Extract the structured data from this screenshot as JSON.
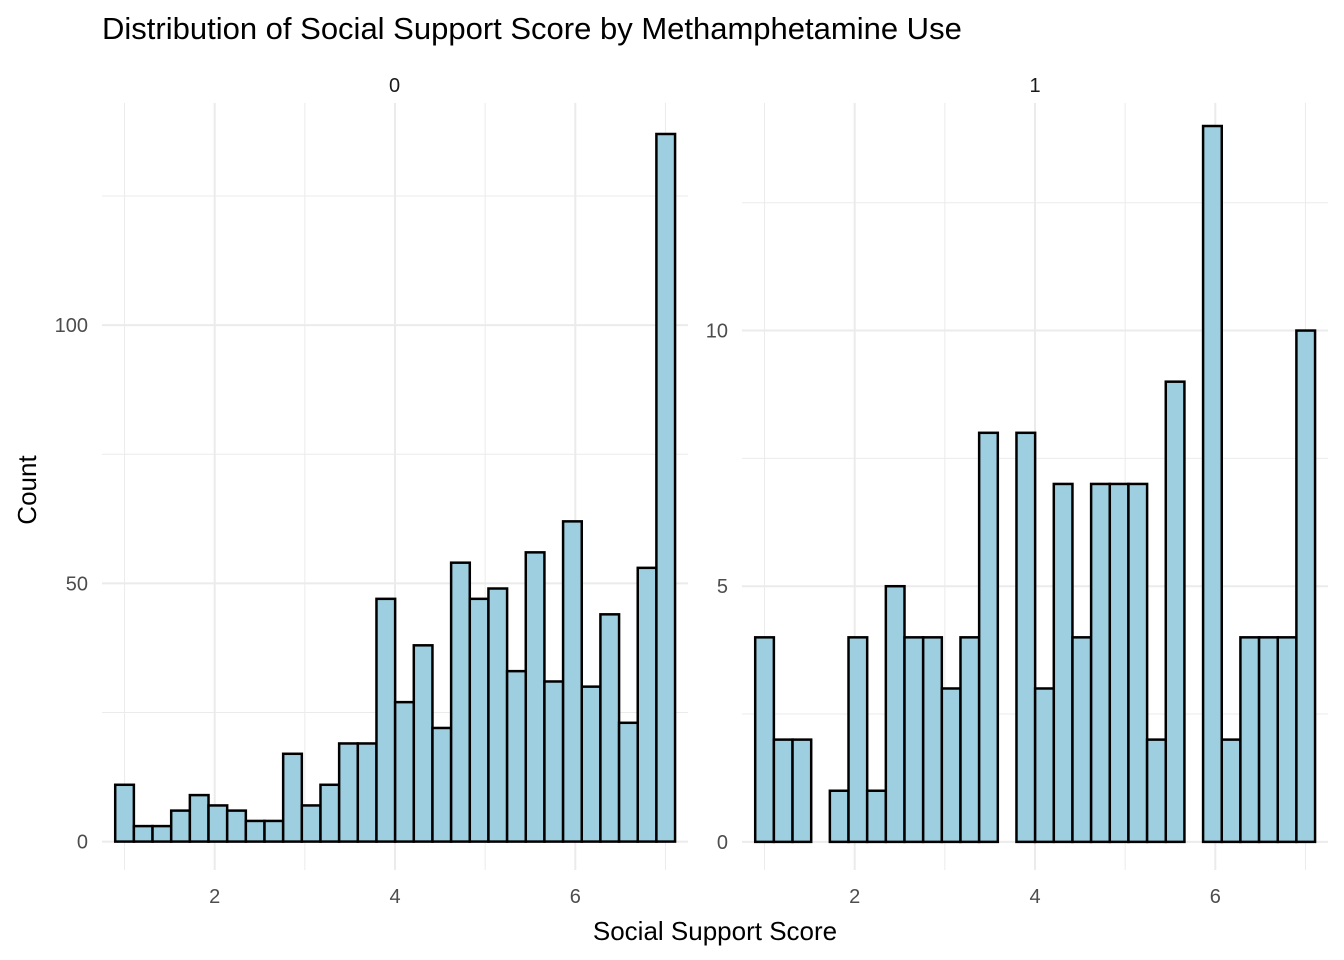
{
  "chart_data": {
    "type": "bar",
    "title": "Distribution of Social Support Score by Methamphetamine Use",
    "xlabel": "Social Support Score",
    "ylabel": "Count",
    "bar_color": "#9ECFE0",
    "bar_outline": "#000000",
    "grid": true,
    "bin_width": 0.207,
    "panels": [
      {
        "label": "0",
        "xlim": [
          0.75,
          7.25
        ],
        "ylim": [
          -5.5,
          143
        ],
        "x_ticks": [
          2,
          4,
          6
        ],
        "y_ticks": [
          0,
          50,
          100
        ],
        "bin_start": 1.0,
        "values": [
          11,
          3,
          3,
          6,
          9,
          7,
          6,
          4,
          4,
          17,
          7,
          11,
          19,
          19,
          47,
          27,
          38,
          22,
          54,
          47,
          49,
          33,
          56,
          31,
          62,
          30,
          44,
          23,
          53,
          137
        ]
      },
      {
        "label": "1",
        "xlim": [
          0.75,
          7.25
        ],
        "ylim": [
          -0.55,
          14.45
        ],
        "x_ticks": [
          2,
          4,
          6
        ],
        "y_ticks": [
          0,
          5,
          10
        ],
        "bin_start": 1.0,
        "values": [
          4,
          2,
          2,
          0,
          1,
          4,
          1,
          5,
          4,
          4,
          3,
          4,
          8,
          0,
          8,
          3,
          7,
          4,
          7,
          7,
          7,
          2,
          9,
          0,
          14,
          2,
          4,
          4,
          4,
          10
        ]
      }
    ]
  }
}
